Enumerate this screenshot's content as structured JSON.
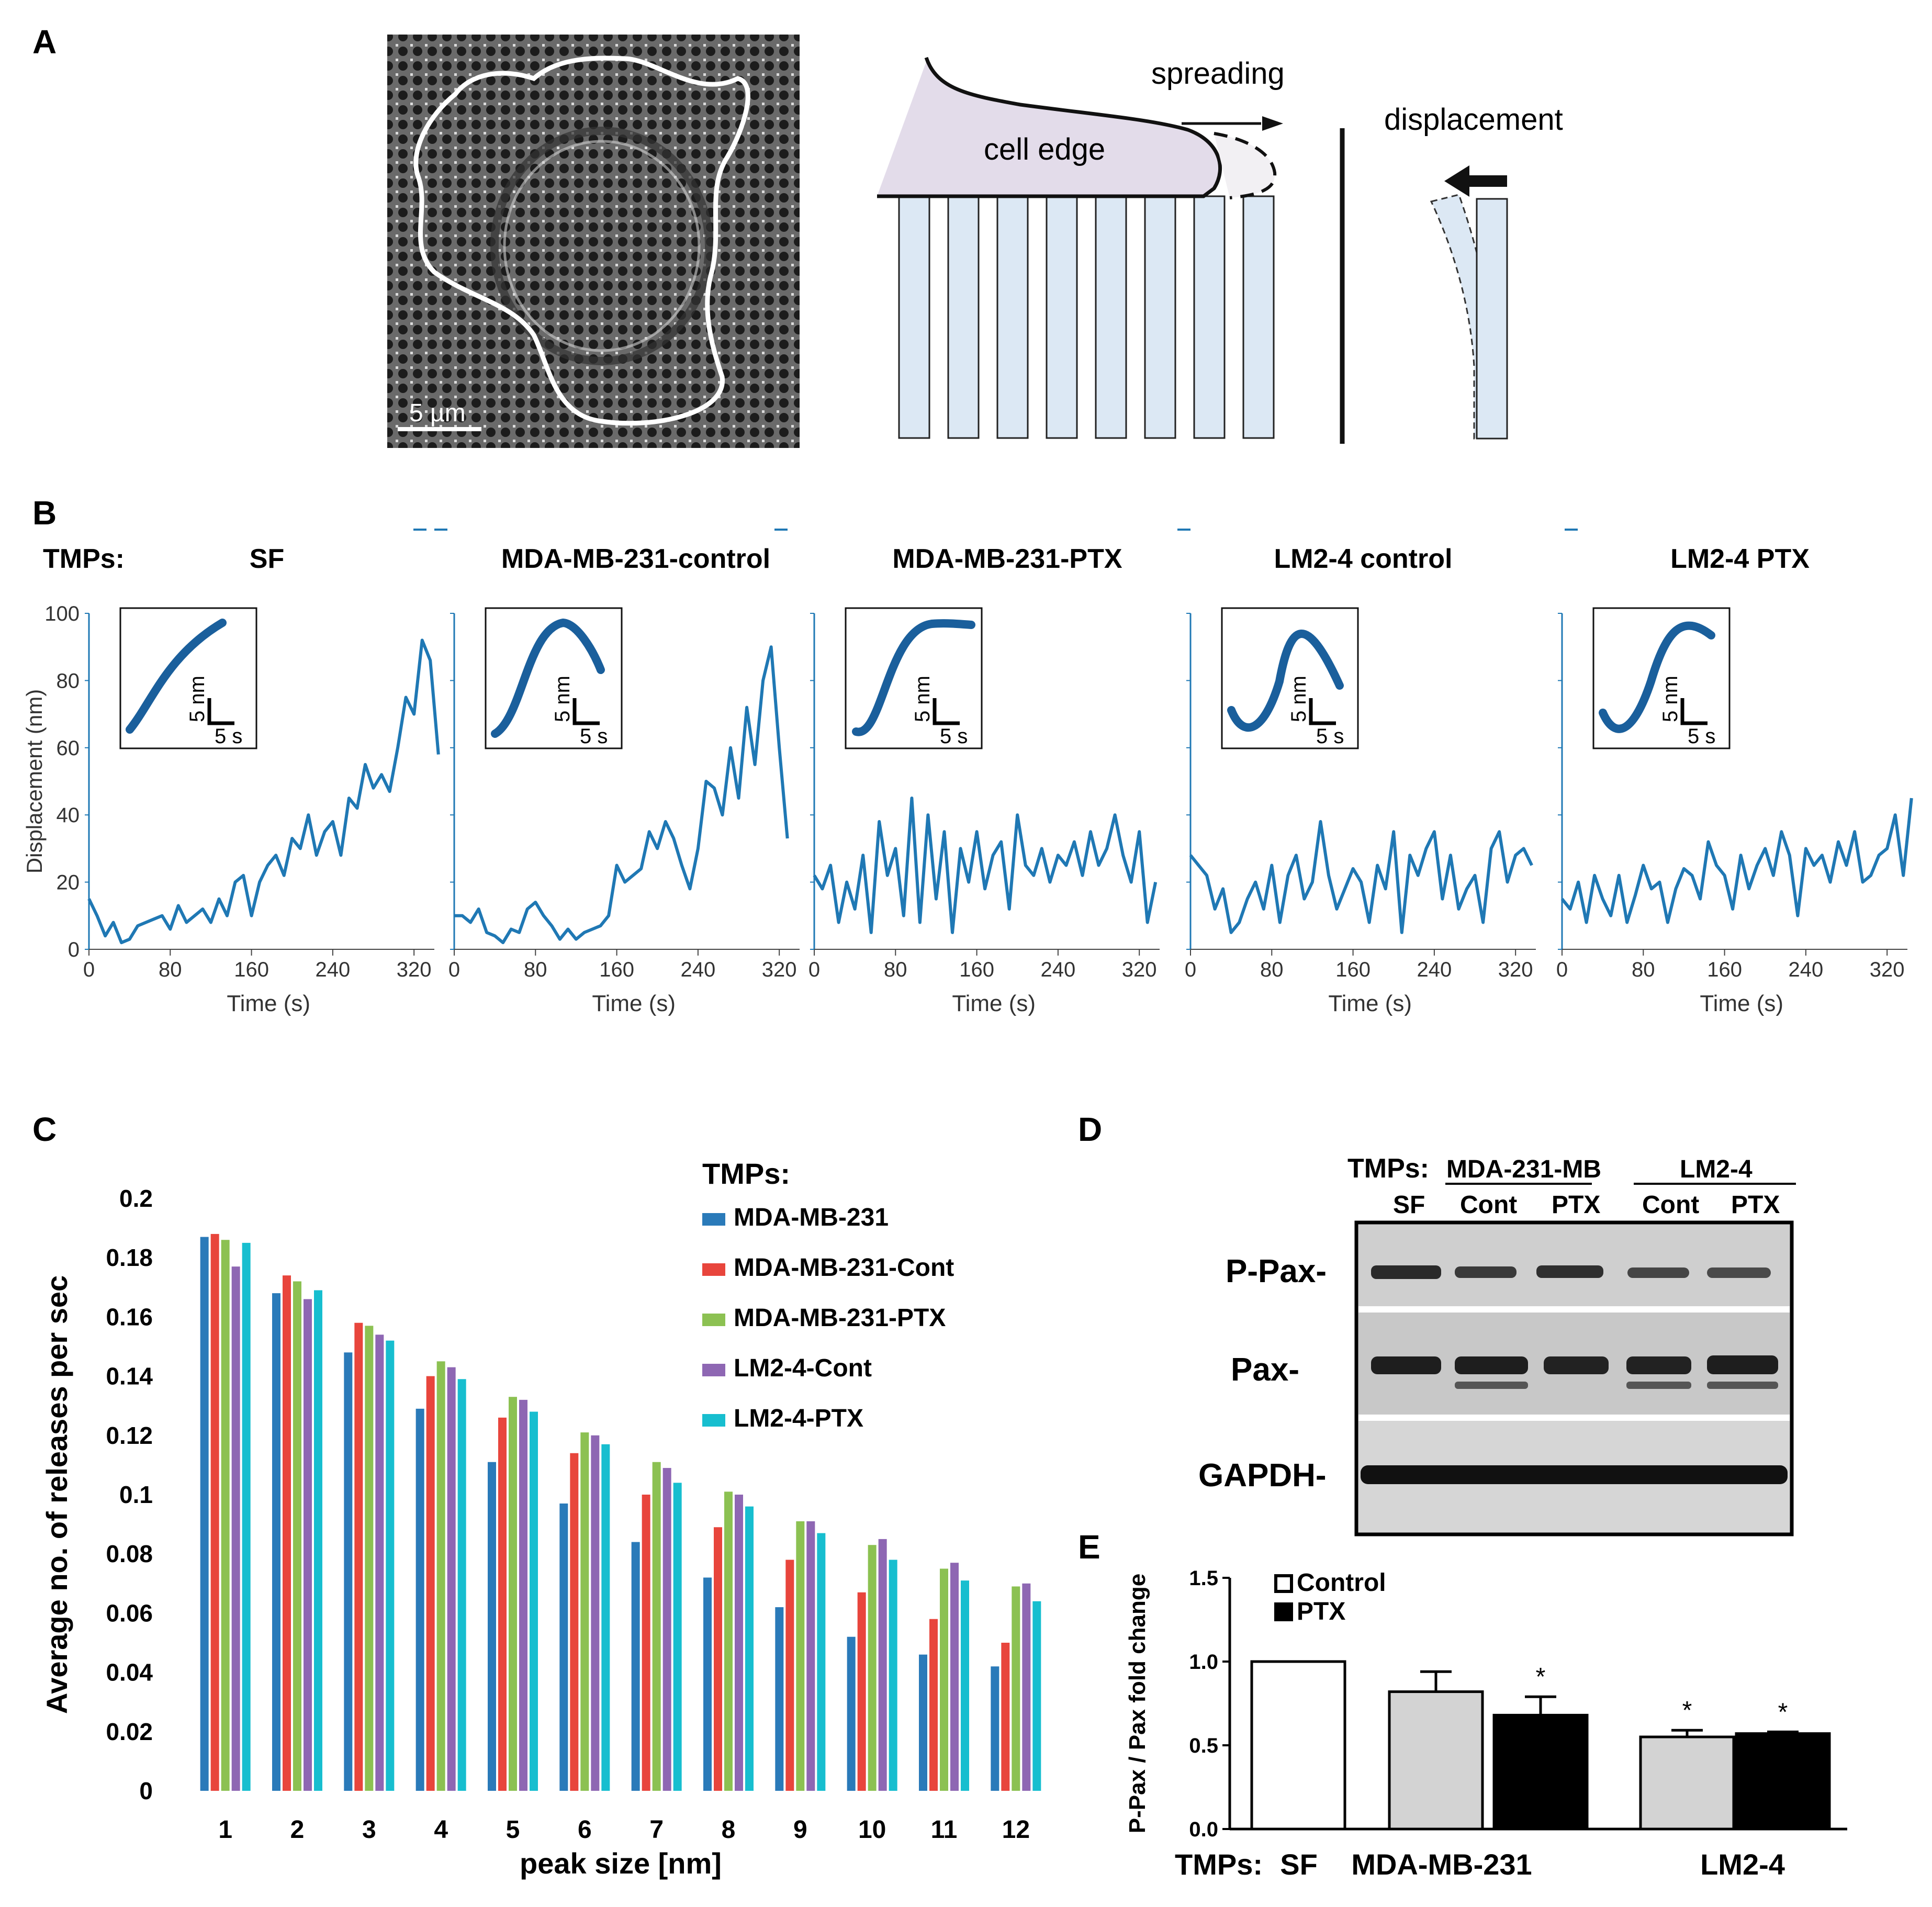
{
  "panel_labels": {
    "a": "A",
    "b": "B",
    "c": "C",
    "d": "D",
    "e": "E"
  },
  "panelA": {
    "scale_bar": "5 µm",
    "spreading": "spreading",
    "cell_edge": "cell edge",
    "displacement": "displacement"
  },
  "panelB": {
    "tmps_label": "TMPs:",
    "ylabel": "Displacement (nm)",
    "xlabel": "Time (s)",
    "inset_v": "5 nm",
    "inset_h": "5 s"
  },
  "panelC_legend_title": "TMPs:",
  "panelD": {
    "tmps_label": "TMPs:",
    "group1": "MDA-231-MB",
    "group2": "LM2-4",
    "lanes": [
      "SF",
      "Cont",
      "PTX",
      "Cont",
      "PTX"
    ],
    "rows": [
      "P-Pax-",
      "Pax-",
      "GAPDH-"
    ]
  },
  "panelE_legend": [
    "Control",
    "PTX"
  ],
  "panelE_tmps": "TMPs:",
  "panelE_stars": [
    "*",
    "*",
    "*"
  ],
  "colors": {
    "trace": "#1f78b4",
    "series": [
      "#2a7ab9",
      "#e8453c",
      "#8cc152",
      "#8e67b3",
      "#17becf"
    ],
    "cell": "#e3dcea",
    "pillar": "#dce8f4"
  },
  "chart_data": [
    {
      "type": "line",
      "title": "SF",
      "xlabel": "Time (s)",
      "ylabel": "Displacement (nm)",
      "xlim": [
        0,
        340
      ],
      "ylim": [
        0,
        100
      ],
      "xticks": [
        0,
        80,
        160,
        240,
        320
      ],
      "yticks": [
        0,
        20,
        40,
        60,
        80,
        100
      ],
      "x": [
        0,
        8,
        16,
        24,
        32,
        40,
        48,
        56,
        64,
        72,
        80,
        88,
        96,
        104,
        112,
        120,
        128,
        136,
        144,
        152,
        160,
        168,
        176,
        184,
        192,
        200,
        208,
        216,
        224,
        232,
        240,
        248,
        256,
        264,
        272,
        280,
        288,
        296,
        304,
        312,
        320,
        328,
        336,
        344
      ],
      "y": [
        15,
        10,
        4,
        8,
        2,
        3,
        7,
        8,
        9,
        10,
        6,
        13,
        8,
        10,
        12,
        8,
        15,
        10,
        20,
        22,
        10,
        20,
        25,
        28,
        22,
        33,
        30,
        40,
        28,
        35,
        38,
        28,
        45,
        42,
        55,
        48,
        52,
        47,
        60,
        75,
        70,
        92,
        86,
        58
      ]
    },
    {
      "type": "line",
      "title": "MDA-MB-231-control",
      "xlabel": "Time (s)",
      "xlim": [
        0,
        340
      ],
      "ylim": [
        0,
        100
      ],
      "xticks": [
        0,
        80,
        160,
        240,
        320
      ],
      "x": [
        0,
        8,
        16,
        24,
        32,
        40,
        48,
        56,
        64,
        72,
        80,
        88,
        96,
        104,
        112,
        120,
        128,
        136,
        144,
        152,
        160,
        168,
        176,
        184,
        192,
        200,
        208,
        216,
        224,
        232,
        240,
        248,
        256,
        264,
        272,
        280,
        288,
        296,
        304,
        312,
        320,
        328
      ],
      "y": [
        10,
        10,
        8,
        12,
        5,
        4,
        2,
        6,
        5,
        12,
        14,
        10,
        7,
        3,
        6,
        3,
        5,
        6,
        7,
        10,
        25,
        20,
        22,
        24,
        35,
        30,
        38,
        33,
        25,
        18,
        30,
        50,
        48,
        40,
        60,
        45,
        72,
        55,
        80,
        90,
        60,
        33
      ]
    },
    {
      "type": "line",
      "title": "MDA-MB-231-PTX",
      "xlabel": "Time (s)",
      "xlim": [
        0,
        340
      ],
      "ylim": [
        0,
        100
      ],
      "xticks": [
        0,
        80,
        160,
        240,
        320
      ],
      "x": [
        0,
        8,
        16,
        24,
        32,
        40,
        48,
        56,
        64,
        72,
        80,
        88,
        96,
        104,
        112,
        120,
        128,
        136,
        144,
        152,
        160,
        168,
        176,
        184,
        192,
        200,
        208,
        216,
        224,
        232,
        240,
        248,
        256,
        264,
        272,
        280,
        288,
        296,
        304,
        312,
        320,
        328,
        336
      ],
      "y": [
        22,
        18,
        25,
        8,
        20,
        12,
        28,
        5,
        38,
        22,
        30,
        10,
        45,
        8,
        40,
        15,
        35,
        5,
        30,
        20,
        35,
        18,
        28,
        32,
        12,
        40,
        25,
        22,
        30,
        20,
        28,
        25,
        32,
        22,
        35,
        25,
        30,
        40,
        28,
        20,
        35,
        8,
        20
      ]
    },
    {
      "type": "line",
      "title": "LM2-4 control",
      "xlabel": "Time (s)",
      "xlim": [
        0,
        340
      ],
      "ylim": [
        0,
        100
      ],
      "xticks": [
        0,
        80,
        160,
        240,
        320
      ],
      "x": [
        0,
        8,
        16,
        24,
        32,
        40,
        48,
        56,
        64,
        72,
        80,
        88,
        96,
        104,
        112,
        120,
        128,
        136,
        144,
        152,
        160,
        168,
        176,
        184,
        192,
        200,
        208,
        216,
        224,
        232,
        240,
        248,
        256,
        264,
        272,
        280,
        288,
        296,
        304,
        312,
        320,
        328,
        336
      ],
      "y": [
        28,
        25,
        22,
        12,
        18,
        5,
        8,
        15,
        20,
        12,
        25,
        8,
        22,
        28,
        15,
        20,
        38,
        22,
        12,
        18,
        24,
        20,
        8,
        25,
        18,
        35,
        5,
        28,
        22,
        30,
        35,
        15,
        28,
        12,
        18,
        22,
        8,
        30,
        35,
        20,
        28,
        30,
        25
      ]
    },
    {
      "type": "line",
      "title": "LM2-4 PTX",
      "xlabel": "Time (s)",
      "xlim": [
        0,
        340
      ],
      "ylim": [
        0,
        100
      ],
      "xticks": [
        0,
        80,
        160,
        240,
        320
      ],
      "x": [
        0,
        8,
        16,
        24,
        32,
        40,
        48,
        56,
        64,
        72,
        80,
        88,
        96,
        104,
        112,
        120,
        128,
        136,
        144,
        152,
        160,
        168,
        176,
        184,
        192,
        200,
        208,
        216,
        224,
        232,
        240,
        248,
        256,
        264,
        272,
        280,
        288,
        296,
        304,
        312,
        320,
        328,
        336,
        344
      ],
      "y": [
        15,
        12,
        20,
        8,
        22,
        15,
        10,
        22,
        8,
        16,
        25,
        18,
        20,
        8,
        18,
        24,
        22,
        15,
        32,
        25,
        22,
        12,
        28,
        18,
        25,
        30,
        22,
        35,
        28,
        10,
        30,
        25,
        28,
        20,
        32,
        25,
        35,
        20,
        22,
        28,
        30,
        40,
        22,
        45
      ]
    },
    {
      "type": "bar",
      "xlabel": "peak size [nm]",
      "ylabel": "Average no. of releases per sec",
      "ylim": [
        0,
        0.2
      ],
      "yticks": [
        "0",
        "0.02",
        "0.04",
        "0.06",
        "0.08",
        "0.1",
        "0.12",
        "0.14",
        "0.16",
        "0.18",
        "0.2"
      ],
      "categories": [
        "1",
        "2",
        "3",
        "4",
        "5",
        "6",
        "7",
        "8",
        "9",
        "10",
        "11",
        "12"
      ],
      "series": [
        {
          "name": "MDA-MB-231",
          "values": [
            0.187,
            0.168,
            0.148,
            0.129,
            0.111,
            0.097,
            0.084,
            0.072,
            0.062,
            0.052,
            0.046,
            0.042
          ]
        },
        {
          "name": "MDA-MB-231-Cont",
          "values": [
            0.188,
            0.174,
            0.158,
            0.14,
            0.126,
            0.114,
            0.1,
            0.089,
            0.078,
            0.067,
            0.058,
            0.05
          ]
        },
        {
          "name": "MDA-MB-231-PTX",
          "values": [
            0.186,
            0.172,
            0.157,
            0.145,
            0.133,
            0.121,
            0.111,
            0.101,
            0.091,
            0.083,
            0.075,
            0.069
          ]
        },
        {
          "name": "LM2-4-Cont",
          "values": [
            0.177,
            0.166,
            0.154,
            0.143,
            0.132,
            0.12,
            0.109,
            0.1,
            0.091,
            0.085,
            0.077,
            0.07
          ]
        },
        {
          "name": "LM2-4-PTX",
          "values": [
            0.185,
            0.169,
            0.152,
            0.139,
            0.128,
            0.117,
            0.104,
            0.096,
            0.087,
            0.078,
            0.071,
            0.064
          ]
        }
      ]
    },
    {
      "type": "bar",
      "ylabel": "P-Pax / Pax fold change",
      "ylim": [
        0,
        1.5
      ],
      "yticks": [
        "0.0",
        "0.5",
        "1.0",
        "1.5"
      ],
      "categories": [
        "SF",
        "MDA-MB-231",
        "LM2-4"
      ],
      "bars": [
        {
          "group": "SF",
          "kind": "",
          "value": 1.0,
          "error": 0
        },
        {
          "group": "MDA-MB-231",
          "kind": "Control",
          "value": 0.82,
          "error": 0.12
        },
        {
          "group": "MDA-MB-231",
          "kind": "PTX",
          "value": 0.68,
          "error": 0.11
        },
        {
          "group": "LM2-4",
          "kind": "Control",
          "value": 0.55,
          "error": 0.04
        },
        {
          "group": "LM2-4",
          "kind": "PTX",
          "value": 0.57,
          "error": 0.01
        }
      ]
    }
  ]
}
